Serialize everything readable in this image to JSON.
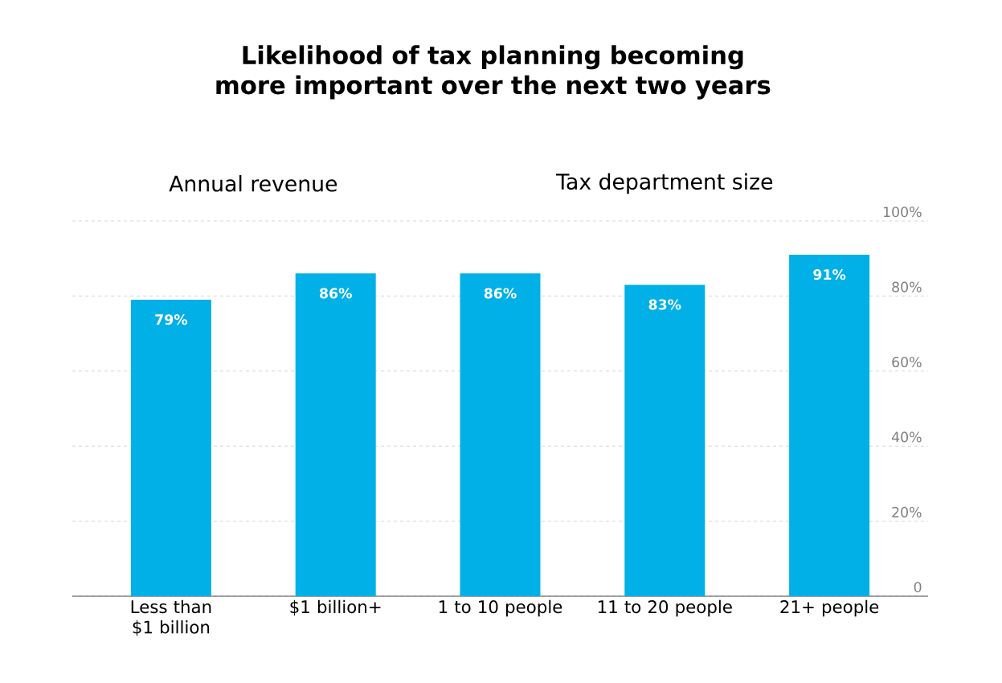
{
  "chart_data": {
    "type": "bar",
    "title": "Likelihood of tax planning becoming more important over the next two years",
    "categories": [
      "Less than $1 billion",
      "$1 billion+",
      "1 to 10 people",
      "11 to 20 people",
      "21+ people"
    ],
    "values": [
      79,
      86,
      86,
      83,
      91
    ],
    "value_labels": [
      "79%",
      "86%",
      "86%",
      "83%",
      "91%"
    ],
    "color": "#00b0e6",
    "ylim": [
      0,
      100
    ],
    "yticks": [
      {
        "value": 0,
        "label": "0"
      },
      {
        "value": 20,
        "label": "20%"
      },
      {
        "value": 40,
        "label": "40%"
      },
      {
        "value": 60,
        "label": "60%"
      },
      {
        "value": 80,
        "label": "80%"
      },
      {
        "value": 100,
        "label": "100%"
      }
    ],
    "grid": "y",
    "annotations": [
      {
        "text": "Annual revenue"
      },
      {
        "text": "Tax department size"
      }
    ]
  }
}
